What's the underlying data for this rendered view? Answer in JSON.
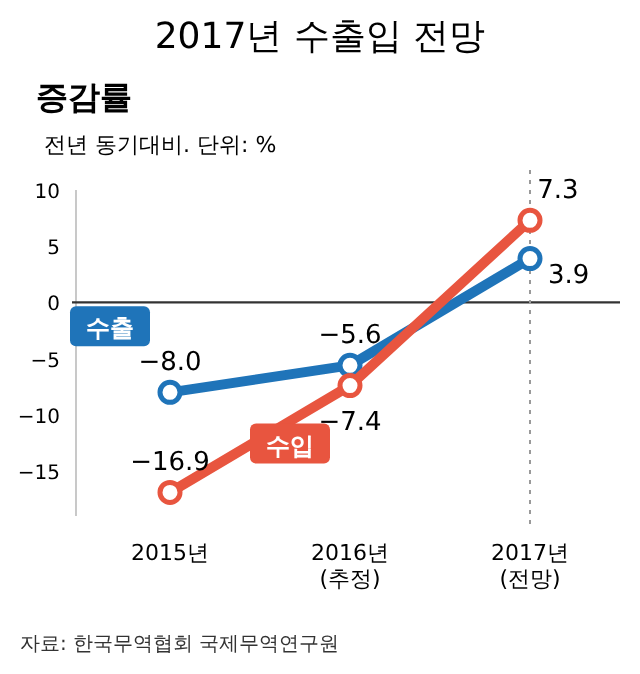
{
  "chart_data": {
    "type": "line",
    "title": "2017년 수출입 전망",
    "subtitle": "증감률",
    "ylabel": "전년 동기대비. 단위: %",
    "categories": [
      "2015년",
      "2016년\n(추정)",
      "2017년\n(전망)"
    ],
    "series": [
      {
        "name": "수출",
        "color": "#1f74b9",
        "values": [
          -8.0,
          -5.6,
          3.9
        ],
        "value_labels": [
          "−8.0",
          "−5.6",
          "3.9"
        ]
      },
      {
        "name": "수입",
        "color": "#e8553f",
        "values": [
          -16.9,
          -7.4,
          7.3
        ],
        "value_labels": [
          "−16.9",
          "−7.4",
          "7.3"
        ]
      }
    ],
    "ylim": [
      -19,
      10
    ],
    "yticks": [
      {
        "value": 10,
        "label": "10"
      },
      {
        "value": 5,
        "label": "5"
      },
      {
        "value": 0,
        "label": "0"
      },
      {
        "value": -5,
        "label": "−5"
      },
      {
        "value": -10,
        "label": "−10"
      },
      {
        "value": -15,
        "label": "−15"
      }
    ],
    "ref_lines": [
      {
        "axis": "x",
        "value": "2017년\n(전망)",
        "line_style": "dotted",
        "color": "#999999"
      }
    ],
    "marker": "circle",
    "line_style": "solid",
    "grid": false,
    "legend": false,
    "annotations": [
      "자료: 한국무역협회 국제무역연구원"
    ]
  }
}
